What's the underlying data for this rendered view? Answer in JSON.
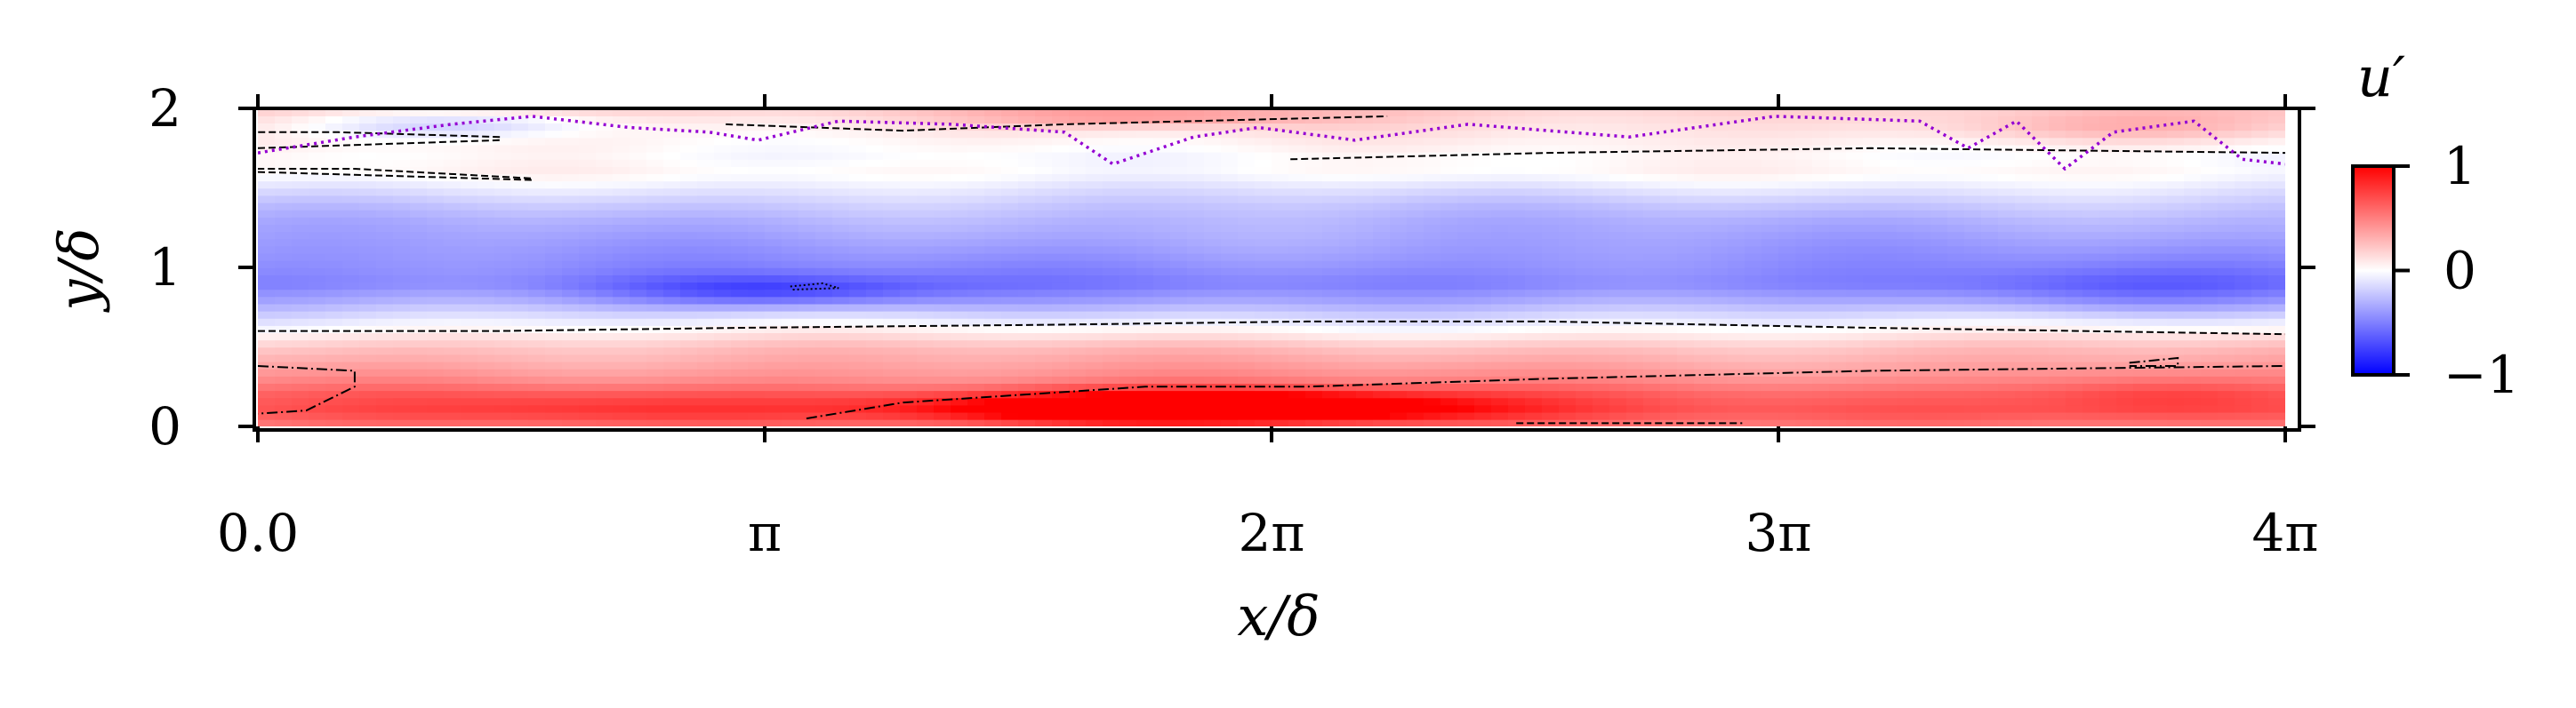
{
  "chart_data": {
    "type": "heatmap",
    "xlabel": "x/δ",
    "ylabel": "y/δ",
    "colorbar_label": "u′",
    "xlim": [
      0,
      12.566
    ],
    "ylim": [
      0,
      2
    ],
    "x_ticks": [
      {
        "value": 0,
        "label": "0.0"
      },
      {
        "value": 3.1416,
        "label": "π"
      },
      {
        "value": 6.2832,
        "label": "2π"
      },
      {
        "value": 9.4248,
        "label": "3π"
      },
      {
        "value": 12.566,
        "label": "4π"
      }
    ],
    "y_ticks": [
      {
        "value": 0,
        "label": "0"
      },
      {
        "value": 1,
        "label": "1"
      },
      {
        "value": 2,
        "label": "2"
      }
    ],
    "colorbar": {
      "range": [
        -1,
        1
      ],
      "colors": [
        "#0000ff",
        "#ffffff",
        "#ff0000"
      ],
      "ticks": [
        {
          "value": 1,
          "label": "1"
        },
        {
          "value": 0,
          "label": "0"
        },
        {
          "value": -1,
          "label": "−1"
        }
      ]
    },
    "mean_profile": [
      {
        "y": 0.0,
        "u": 0.5
      },
      {
        "y": 0.1,
        "u": 0.65
      },
      {
        "y": 0.2,
        "u": 0.6
      },
      {
        "y": 0.3,
        "u": 0.45
      },
      {
        "y": 0.4,
        "u": 0.35
      },
      {
        "y": 0.5,
        "u": 0.25
      },
      {
        "y": 0.6,
        "u": 0.05
      },
      {
        "y": 0.7,
        "u": -0.15
      },
      {
        "y": 0.8,
        "u": -0.35
      },
      {
        "y": 0.9,
        "u": -0.5
      },
      {
        "y": 1.0,
        "u": -0.45
      },
      {
        "y": 1.1,
        "u": -0.4
      },
      {
        "y": 1.2,
        "u": -0.35
      },
      {
        "y": 1.3,
        "u": -0.3
      },
      {
        "y": 1.4,
        "u": -0.22
      },
      {
        "y": 1.5,
        "u": -0.1
      },
      {
        "y": 1.6,
        "u": 0.02
      },
      {
        "y": 1.7,
        "u": 0.0
      },
      {
        "y": 1.8,
        "u": 0.05
      },
      {
        "y": 1.9,
        "u": 0.12
      },
      {
        "y": 2.0,
        "u": 0.2
      }
    ],
    "features": [
      {
        "x": 5.8,
        "y": 0.12,
        "u": 0.95,
        "sx": 1.6,
        "sy": 0.1
      },
      {
        "x": 2.2,
        "y": 0.12,
        "u": 0.15,
        "sx": 1.2,
        "sy": 0.12
      },
      {
        "x": 11.8,
        "y": 0.2,
        "u": 0.2,
        "sx": 0.8,
        "sy": 0.15
      },
      {
        "x": 3.2,
        "y": 0.85,
        "u": -0.3,
        "sx": 1.0,
        "sy": 0.1
      },
      {
        "x": 11.5,
        "y": 0.85,
        "u": -0.15,
        "sx": 1.0,
        "sy": 0.15
      },
      {
        "x": 1.2,
        "y": 1.9,
        "u": -0.25,
        "sx": 1.0,
        "sy": 0.08
      },
      {
        "x": 5.5,
        "y": 1.95,
        "u": 0.25,
        "sx": 1.0,
        "sy": 0.06
      },
      {
        "x": 11.5,
        "y": 1.88,
        "u": 0.2,
        "sx": 1.2,
        "sy": 0.1
      }
    ],
    "contours": {
      "dashed": [
        [
          [
            0,
            0.6
          ],
          [
            1.5,
            0.6
          ],
          [
            3.0,
            0.62
          ],
          [
            5.0,
            0.64
          ],
          [
            6.5,
            0.66
          ],
          [
            8.0,
            0.66
          ],
          [
            10.0,
            0.62
          ],
          [
            12.566,
            0.58
          ]
        ],
        [
          [
            0,
            1.6
          ],
          [
            1.7,
            1.55
          ],
          [
            1.7,
            1.56
          ],
          [
            0.6,
            1.62
          ],
          [
            0,
            1.62
          ]
        ],
        [
          [
            0,
            1.75
          ],
          [
            1.5,
            1.8
          ],
          [
            1.5,
            1.82
          ],
          [
            0.5,
            1.85
          ],
          [
            0,
            1.85
          ]
        ],
        [
          [
            2.9,
            1.9
          ],
          [
            4.0,
            1.86
          ],
          [
            5.0,
            1.9
          ],
          [
            7.0,
            1.95
          ]
        ],
        [
          [
            6.4,
            1.68
          ],
          [
            8.0,
            1.72
          ],
          [
            10.0,
            1.75
          ],
          [
            12.566,
            1.72
          ]
        ],
        [
          [
            7.8,
            0.02
          ],
          [
            9.2,
            0.02
          ]
        ]
      ],
      "dashdot": [
        [
          [
            0,
            0.38
          ],
          [
            0.6,
            0.35
          ],
          [
            0.6,
            0.25
          ],
          [
            0.3,
            0.1
          ],
          [
            0,
            0.08
          ]
        ],
        [
          [
            3.4,
            0.05
          ],
          [
            4.0,
            0.15
          ],
          [
            5.5,
            0.25
          ],
          [
            6.5,
            0.25
          ],
          [
            8.0,
            0.3
          ],
          [
            10.0,
            0.35
          ],
          [
            12.566,
            0.38
          ]
        ],
        [
          [
            11.6,
            0.4
          ],
          [
            11.9,
            0.43
          ],
          [
            11.9,
            0.38
          ],
          [
            11.6,
            0.38
          ]
        ]
      ],
      "dotted_black": [
        [
          [
            3.3,
            0.88
          ],
          [
            3.5,
            0.9
          ],
          [
            3.6,
            0.87
          ],
          [
            3.3,
            0.86
          ]
        ]
      ],
      "dotted_violet": [
        [
          [
            0,
            1.72
          ],
          [
            0.6,
            1.82
          ],
          [
            1.2,
            1.9
          ],
          [
            1.7,
            1.95
          ],
          [
            2.3,
            1.88
          ],
          [
            2.8,
            1.85
          ],
          [
            3.1,
            1.8
          ],
          [
            3.6,
            1.92
          ],
          [
            4.3,
            1.9
          ],
          [
            5.0,
            1.85
          ],
          [
            5.3,
            1.65
          ],
          [
            5.8,
            1.82
          ],
          [
            6.2,
            1.88
          ],
          [
            6.8,
            1.8
          ],
          [
            7.5,
            1.9
          ],
          [
            8.5,
            1.82
          ],
          [
            9.4,
            1.95
          ],
          [
            10.3,
            1.92
          ],
          [
            10.6,
            1.75
          ],
          [
            10.9,
            1.92
          ],
          [
            11.2,
            1.62
          ],
          [
            11.5,
            1.85
          ],
          [
            12.0,
            1.92
          ],
          [
            12.3,
            1.68
          ],
          [
            12.566,
            1.65
          ]
        ]
      ]
    },
    "grid": false,
    "legend": "none"
  }
}
